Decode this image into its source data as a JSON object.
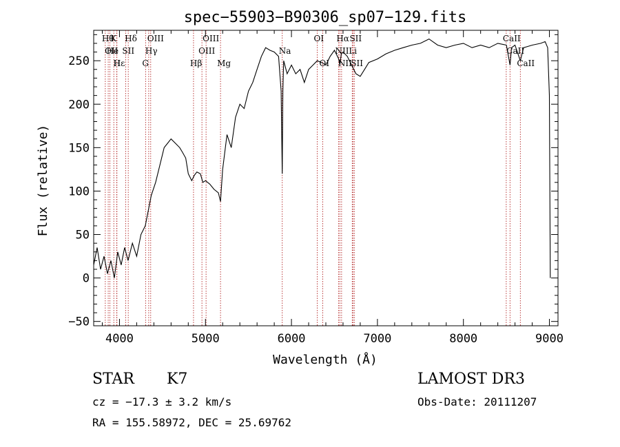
{
  "chart_data": {
    "type": "line",
    "title": "spec−55903−B90306_sp07−129.fits",
    "xlabel": "Wavelength (Å)",
    "ylabel": "Flux (relative)",
    "xlim": [
      3700,
      9100
    ],
    "ylim": [
      -55,
      285
    ],
    "x_ticks": [
      4000,
      5000,
      6000,
      7000,
      8000,
      9000
    ],
    "x_tick_labels": [
      "4000",
      "5000",
      "6000",
      "7000",
      "8000",
      "9000"
    ],
    "y_ticks": [
      -50,
      0,
      50,
      100,
      150,
      200,
      250
    ],
    "y_tick_labels": [
      "−50",
      "0",
      "50",
      "100",
      "150",
      "200",
      "250"
    ],
    "series": [
      {
        "name": "flux",
        "x": [
          3700,
          3740,
          3780,
          3820,
          3860,
          3900,
          3940,
          3980,
          4020,
          4060,
          4100,
          4150,
          4200,
          4250,
          4300,
          4330,
          4370,
          4420,
          4470,
          4520,
          4560,
          4600,
          4650,
          4700,
          4730,
          4770,
          4800,
          4840,
          4870,
          4900,
          4940,
          4970,
          5000,
          5050,
          5100,
          5150,
          5175,
          5200,
          5250,
          5300,
          5350,
          5400,
          5450,
          5500,
          5550,
          5600,
          5650,
          5700,
          5750,
          5800,
          5850,
          5880,
          5893,
          5900,
          5910,
          5950,
          6000,
          6050,
          6100,
          6150,
          6200,
          6250,
          6300,
          6350,
          6400,
          6450,
          6500,
          6550,
          6563,
          6580,
          6600,
          6650,
          6700,
          6750,
          6800,
          6850,
          6900,
          7000,
          7100,
          7200,
          7300,
          7400,
          7500,
          7600,
          7700,
          7800,
          7900,
          8000,
          8100,
          8200,
          8300,
          8400,
          8500,
          8542,
          8560,
          8600,
          8662,
          8700,
          8800,
          8900,
          8950,
          8980,
          9000,
          9010
        ],
        "y": [
          15,
          35,
          10,
          25,
          5,
          20,
          0,
          30,
          15,
          35,
          20,
          40,
          25,
          50,
          60,
          75,
          95,
          110,
          130,
          150,
          155,
          160,
          155,
          150,
          145,
          138,
          120,
          112,
          118,
          122,
          120,
          110,
          112,
          108,
          102,
          98,
          88,
          125,
          165,
          150,
          185,
          200,
          195,
          215,
          225,
          240,
          255,
          265,
          262,
          260,
          255,
          215,
          120,
          215,
          250,
          235,
          245,
          235,
          240,
          225,
          240,
          245,
          250,
          248,
          245,
          255,
          262,
          252,
          245,
          258,
          260,
          255,
          245,
          235,
          232,
          240,
          248,
          252,
          258,
          262,
          265,
          268,
          270,
          275,
          268,
          265,
          268,
          270,
          265,
          268,
          265,
          270,
          268,
          245,
          265,
          268,
          250,
          265,
          268,
          270,
          272,
          265,
          210,
          0
        ]
      }
    ],
    "lines": [
      {
        "x": 3835,
        "label": "Hθ",
        "row": 0
      },
      {
        "x": 3869,
        "label": "OII",
        "row": 1
      },
      {
        "x": 3889,
        "label": "He",
        "row": 1
      },
      {
        "x": 3934,
        "label": "K",
        "row": 0
      },
      {
        "x": 3968,
        "label": "H",
        "row": 2
      },
      {
        "x": 3970,
        "label": "Hε",
        "row": 2
      },
      {
        "x": 4072,
        "label": "SII",
        "row": 1
      },
      {
        "x": 4102,
        "label": "Hδ",
        "row": 0
      },
      {
        "x": 4304,
        "label": "G",
        "row": 2
      },
      {
        "x": 4340,
        "label": "Hγ",
        "row": 1
      },
      {
        "x": 4363,
        "label": "OIII",
        "row": 0
      },
      {
        "x": 4861,
        "label": "Hβ",
        "row": 2
      },
      {
        "x": 4959,
        "label": "OIII",
        "row": 1
      },
      {
        "x": 5007,
        "label": "OIII",
        "row": 0
      },
      {
        "x": 5175,
        "label": "Mg",
        "row": 2
      },
      {
        "x": 5893,
        "label": "Na",
        "row": 1
      },
      {
        "x": 6300,
        "label": "OI",
        "row": 0
      },
      {
        "x": 6364,
        "label": "OI",
        "row": 2
      },
      {
        "x": 6548,
        "label": "NII",
        "row": 1
      },
      {
        "x": 6563,
        "label": "Hα",
        "row": 0
      },
      {
        "x": 6583,
        "label": "NII",
        "row": 2
      },
      {
        "x": 6707,
        "label": "Li",
        "row": 1
      },
      {
        "x": 6716,
        "label": "SII",
        "row": 0
      },
      {
        "x": 6731,
        "label": "SII",
        "row": 2
      },
      {
        "x": 8498,
        "label": "CaII",
        "row": 0
      },
      {
        "x": 8542,
        "label": "CaII",
        "row": 1
      },
      {
        "x": 8662,
        "label": "CaII",
        "row": 2
      }
    ]
  },
  "footer": {
    "class": "STAR",
    "subclass": "K7",
    "survey": "LAMOST DR3",
    "cz": "cz = −17.3 ± 3.2 km/s",
    "obs_date": "Obs-Date: 20111207",
    "coords": "RA = 155.58972, DEC =  25.69762"
  }
}
